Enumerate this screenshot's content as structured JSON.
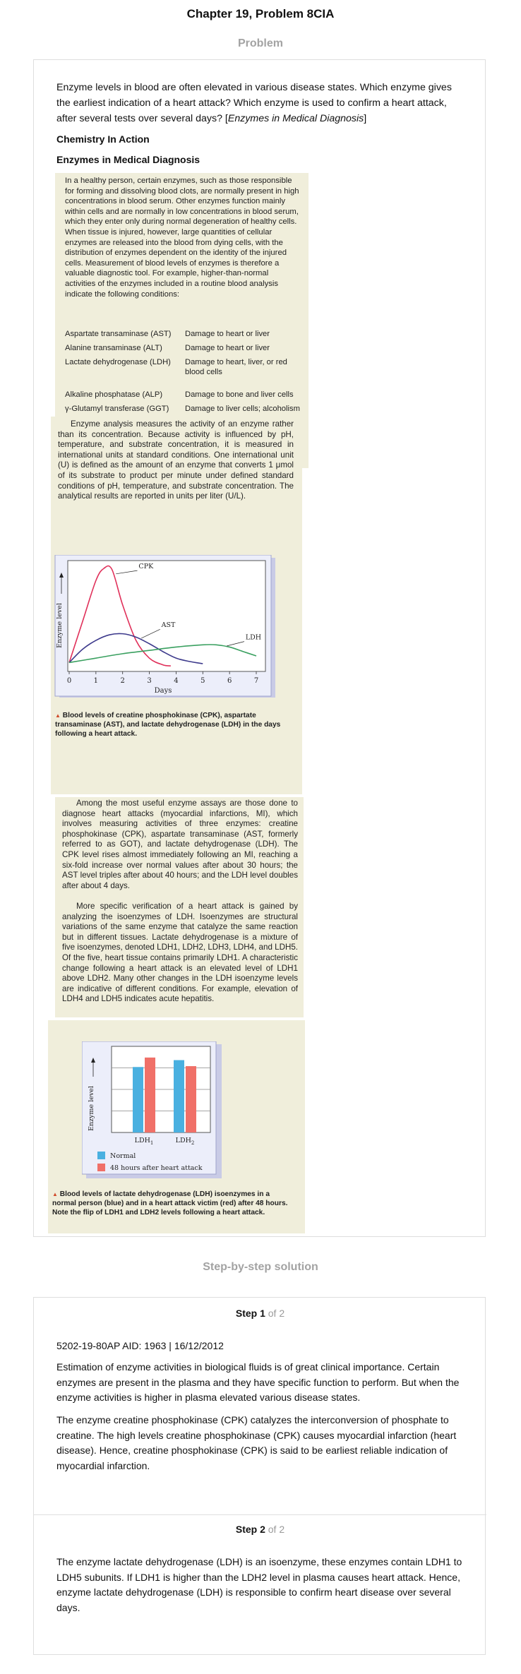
{
  "title": "Chapter 19, Problem 8CIA",
  "problem_heading": "Problem",
  "question": {
    "text_before": "Enzyme levels in blood are often elevated in various disease states. Which enzyme gives the earliest indication of a heart attack? Which enzyme is used to confirm a heart attack, after several tests over several days? [",
    "text_italic": "Enzymes in Medical Diagnosis",
    "text_after": "]"
  },
  "chem_in_action": "Chemistry In Action",
  "article_title": "Enzymes in Medical Diagnosis",
  "box1": {
    "para": "In a healthy person, certain enzymes, such as those responsible for forming and dissolving blood clots, are normally present in high concentrations in blood serum. Other enzymes function mainly within cells and are normally in low concentrations in blood serum, which they enter only during normal degeneration of healthy cells. When tissue is injured, however, large quantities of cellular enzymes are released into the blood from dying cells, with the distribution of enzymes dependent on the identity of the injured cells. Measurement of blood levels of enzymes is therefore a valuable diagnostic tool. For example, higher-than-normal activities of the enzymes included in a routine blood analysis indicate the following conditions:",
    "table": [
      {
        "enzyme": "Aspartate transaminase (AST)",
        "condition": "Damage to heart or liver"
      },
      {
        "enzyme": "Alanine transaminase (ALT)",
        "condition": "Damage to heart or liver"
      },
      {
        "enzyme": "Lactate dehydrogenase (LDH)",
        "condition": "Damage to heart, liver, or red blood cells"
      },
      {
        "enzyme": "Alkaline phosphatase (ALP)",
        "condition": "Damage to bone and liver cells"
      },
      {
        "enzyme": "γ-Glutamyl transferase (GGT)",
        "condition": "Damage to liver cells; alcoholism"
      }
    ]
  },
  "box2": {
    "para": "Enzyme analysis measures the activity of an enzyme rather than its concentration. Because activity is influenced by pH, temperature, and substrate concentration, it is measured in international units at standard conditions. One international unit (U) is defined as the amount of an enzyme that converts 1 μmol of its substrate to product per minute under defined standard conditions of pH, temperature, and substrate concentration. The analytical results are reported in units per liter (U/L).",
    "caption": "Blood levels of creatine phosphokinase (CPK), aspartate transaminase (AST), and lactate dehydrogenase (LDH) in the days following a heart attack."
  },
  "box3": {
    "para1": "Among the most useful enzyme assays are those done to diagnose heart attacks (myocardial infarctions, MI), which involves measuring activities of three enzymes: creatine phosphokinase (CPK), aspartate transaminase (AST, formerly referred to as GOT), and lactate dehydrogenase (LDH). The CPK level rises almost immediately following an MI, reaching a six-fold increase over normal values after about 30 hours; the AST level triples after about 40 hours; and the LDH level doubles after about 4 days.",
    "para2": "More specific verification of a heart attack is gained by analyzing the isoenzymes of LDH. Isoenzymes are structural variations of the same enzyme that catalyze the same reaction but in different tissues. Lactate dehydrogenase is a mixture of five isoenzymes, denoted LDH1, LDH2, LDH3, LDH4, and LDH5. Of the five, heart tissue contains primarily LDH1. A characteristic change following a heart attack is an elevated level of LDH1 above LDH2. Many other changes in the LDH isoenzyme levels are indicative of different conditions. For example, elevation of LDH4 and LDH5 indicates acute hepatitis."
  },
  "box4": {
    "caption": "Blood levels of lactate dehydrogenase (LDH) isoenzymes in a normal person (blue) and in a heart attack victim (red) after 48 hours. Note the flip of LDH1 and LDH2 levels following a heart attack."
  },
  "chart_data": [
    {
      "type": "line",
      "title": "",
      "xlabel": "Days",
      "ylabel": "Enzyme level",
      "xlim": [
        0,
        7
      ],
      "x_ticks": [
        "0",
        "1",
        "2",
        "3",
        "4",
        "5",
        "6",
        "7"
      ],
      "colors": {
        "CPK": "#e0305a",
        "AST": "#3d3a8c",
        "LDH": "#3aa060"
      },
      "series": [
        {
          "name": "CPK",
          "x": [
            0,
            0.5,
            1,
            1.3,
            1.6,
            2,
            2.5,
            3,
            3.5,
            3.8
          ],
          "y": [
            0.08,
            0.45,
            0.82,
            0.93,
            0.92,
            0.6,
            0.28,
            0.12,
            0.06,
            0.05
          ]
        },
        {
          "name": "AST",
          "x": [
            0,
            0.5,
            1,
            1.5,
            2,
            2.5,
            3,
            3.5,
            4,
            4.5,
            5
          ],
          "y": [
            0.08,
            0.2,
            0.28,
            0.33,
            0.34,
            0.31,
            0.25,
            0.18,
            0.12,
            0.09,
            0.07
          ]
        },
        {
          "name": "LDH",
          "x": [
            0,
            1,
            2,
            3,
            4,
            5,
            5.5,
            6,
            6.5,
            7
          ],
          "y": [
            0.08,
            0.12,
            0.16,
            0.19,
            0.22,
            0.24,
            0.24,
            0.22,
            0.18,
            0.14
          ]
        }
      ],
      "labels": [
        "CPK",
        "AST",
        "LDH"
      ]
    },
    {
      "type": "bar",
      "title": "",
      "xlabel": "",
      "ylabel": "Enzyme level",
      "categories": [
        "LDH1",
        "LDH2"
      ],
      "colors": {
        "Normal": "#4ab0e0",
        "48 hours after heart attack": "#f07068"
      },
      "series": [
        {
          "name": "Normal",
          "values": [
            76,
            84
          ]
        },
        {
          "name": "48 hours after heart attack",
          "values": [
            87,
            77
          ]
        }
      ],
      "ylim": [
        0,
        100
      ]
    }
  ],
  "solution_heading": "Step-by-step solution",
  "step1": {
    "label": "Step 1",
    "of": "of 2",
    "id_line": "5202-19-80AP AID: 1963 | 16/12/2012",
    "p1": "Estimation of enzyme activities in biological fluids is of great clinical importance. Certain enzymes are present in the plasma and they have specific function to perform. But when the enzyme activities is higher in plasma elevated various disease states.",
    "p2": "The enzyme creatine phosphokinase (CPK) catalyzes the interconversion of phosphate to creatine. The high levels creatine phosphokinase (CPK) causes myocardial infarction (heart disease). Hence, creatine phosphokinase (CPK) is said to be earliest reliable indication of myocardial infarction."
  },
  "step2": {
    "label": "Step 2",
    "of": "of 2",
    "p1": "The enzyme lactate dehydrogenase (LDH) is an isoenzyme, these enzymes contain LDH1 to LDH5 subunits. If LDH1 is higher than the LDH2 level in plasma causes heart attack. Hence, enzyme lactate dehydrogenase (LDH) is responsible to confirm heart disease over several days."
  }
}
